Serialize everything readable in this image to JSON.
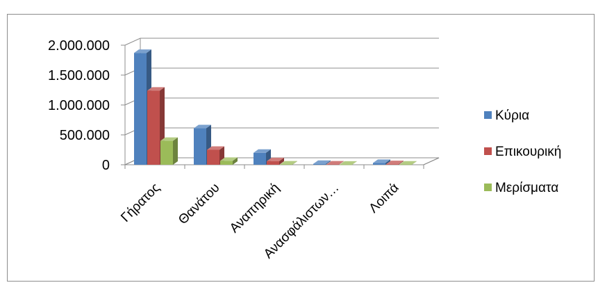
{
  "chart_data": {
    "type": "bar",
    "style": "3d-clustered-column",
    "title": "",
    "xlabel": "",
    "ylabel": "",
    "ylim": [
      0,
      2000000
    ],
    "yticks": [
      0,
      500000,
      1000000,
      1500000,
      2000000
    ],
    "ytick_labels": [
      "0",
      "500.000",
      "1.000.000",
      "1.500.000",
      "2.000.000"
    ],
    "grid": true,
    "legend_position": "right",
    "categories": [
      "Γήρατος",
      "Θανάτου",
      "Αναπηρική",
      "Ανασφάλιστων…",
      "Λοιπά"
    ],
    "series": [
      {
        "name": "Κύρια",
        "color": "#4f81bd",
        "values": [
          1870000,
          610000,
          200000,
          15000,
          30000
        ]
      },
      {
        "name": "Επικουρική",
        "color": "#c0504d",
        "values": [
          1240000,
          250000,
          60000,
          5000,
          10000
        ]
      },
      {
        "name": "Μερίσματα",
        "color": "#9bbb59",
        "values": [
          400000,
          65000,
          5000,
          2000,
          3000
        ]
      }
    ]
  }
}
